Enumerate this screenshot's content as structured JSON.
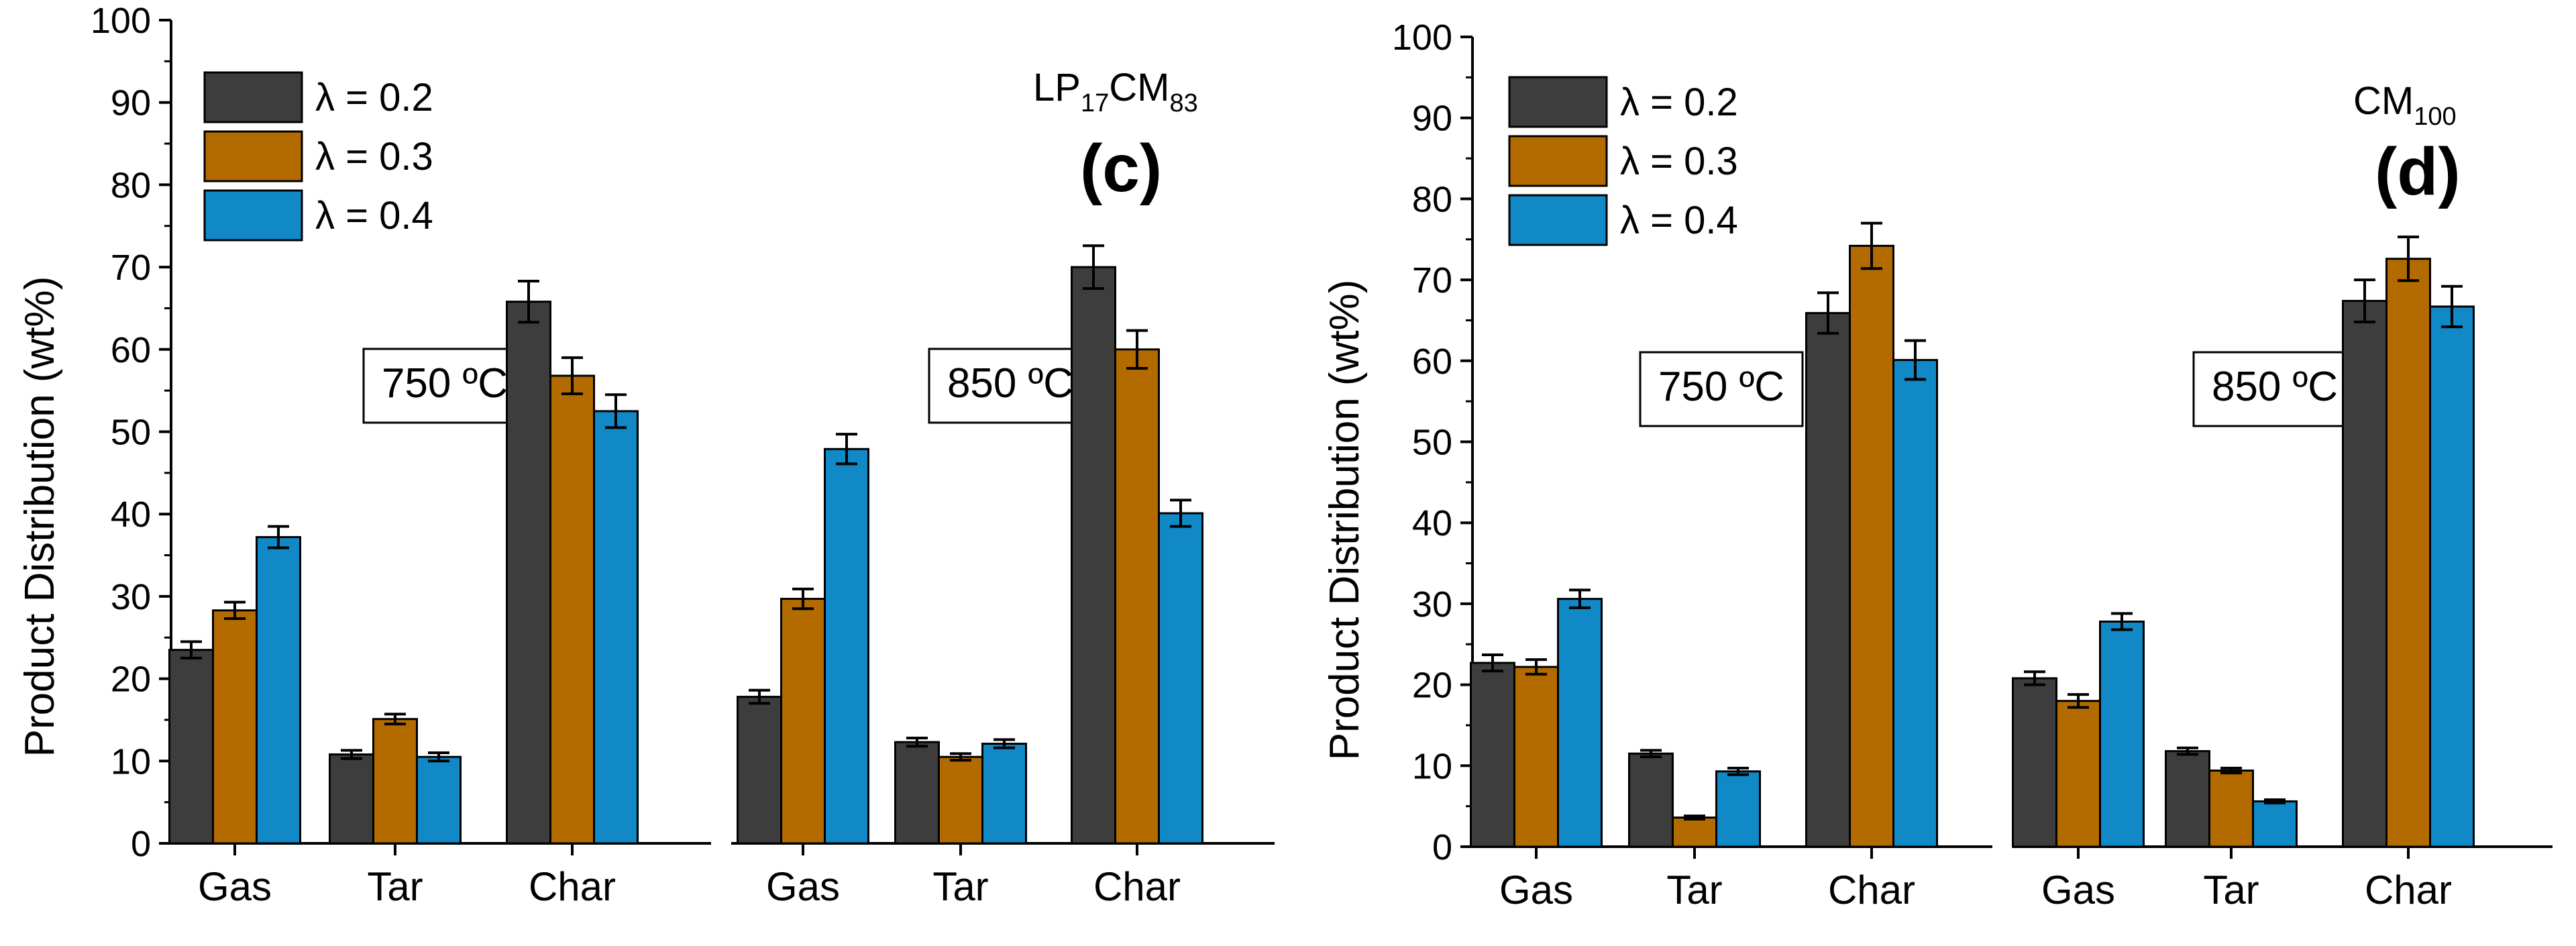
{
  "colors": {
    "lambda_0_2": "#3d3d3d",
    "lambda_0_3": "#b36b00",
    "lambda_0_4": "#1189c6"
  },
  "chart_data": [
    {
      "type": "bar",
      "panel": "(c)",
      "sample": {
        "base1": "LP",
        "sub1": "17",
        "base2": "CM",
        "sub2": "83"
      },
      "ylabel": "Product Distribution (wt%)",
      "ylim": [
        0,
        100
      ],
      "yticks": [
        "0",
        "10",
        "20",
        "30",
        "40",
        "50",
        "60",
        "70",
        "80",
        "90",
        "100"
      ],
      "legend": [
        "λ = 0.2",
        "λ = 0.3",
        "λ = 0.4"
      ],
      "groups": [
        {
          "label": "750 ºC",
          "categories": [
            "Gas",
            "Tar",
            "Char"
          ],
          "series": [
            {
              "name": "λ = 0.2",
              "values": [
                23.5,
                10.8,
                65.8
              ],
              "errors": [
                1.0,
                0.5,
                2.5
              ]
            },
            {
              "name": "λ = 0.3",
              "values": [
                28.3,
                15.1,
                56.8
              ],
              "errors": [
                1.0,
                0.6,
                2.2
              ]
            },
            {
              "name": "λ = 0.4",
              "values": [
                37.2,
                10.5,
                52.5
              ],
              "errors": [
                1.3,
                0.5,
                2.0
              ]
            }
          ]
        },
        {
          "label": "850 ºC",
          "categories": [
            "Gas",
            "Tar",
            "Char"
          ],
          "series": [
            {
              "name": "λ = 0.2",
              "values": [
                17.8,
                12.3,
                70.0
              ],
              "errors": [
                0.8,
                0.5,
                2.6
              ]
            },
            {
              "name": "λ = 0.3",
              "values": [
                29.7,
                10.5,
                60.0
              ],
              "errors": [
                1.2,
                0.4,
                2.3
              ]
            },
            {
              "name": "λ = 0.4",
              "values": [
                47.9,
                12.1,
                40.1
              ],
              "errors": [
                1.8,
                0.5,
                1.6
              ]
            }
          ]
        }
      ]
    },
    {
      "type": "bar",
      "panel": "(d)",
      "sample": {
        "base1": "CM",
        "sub1": "100"
      },
      "ylabel": "Product Distribution (wt%)",
      "ylim": [
        0,
        100
      ],
      "yticks": [
        "0",
        "10",
        "20",
        "30",
        "40",
        "50",
        "60",
        "70",
        "80",
        "90",
        "100"
      ],
      "legend": [
        "λ = 0.2",
        "λ = 0.3",
        "λ = 0.4"
      ],
      "groups": [
        {
          "label": "750 ºC",
          "categories": [
            "Gas",
            "Tar",
            "Char"
          ],
          "series": [
            {
              "name": "λ = 0.2",
              "values": [
                22.7,
                11.5,
                65.9
              ],
              "errors": [
                1.0,
                0.4,
                2.5
              ]
            },
            {
              "name": "λ = 0.3",
              "values": [
                22.2,
                3.6,
                74.2
              ],
              "errors": [
                0.9,
                0.2,
                2.8
              ]
            },
            {
              "name": "λ = 0.4",
              "values": [
                30.6,
                9.3,
                60.1
              ],
              "errors": [
                1.1,
                0.4,
                2.4
              ]
            }
          ]
        },
        {
          "label": "850 ºC",
          "categories": [
            "Gas",
            "Tar",
            "Char"
          ],
          "series": [
            {
              "name": "λ = 0.2",
              "values": [
                20.8,
                11.8,
                67.4
              ],
              "errors": [
                0.8,
                0.4,
                2.6
              ]
            },
            {
              "name": "λ = 0.3",
              "values": [
                18.0,
                9.4,
                72.6
              ],
              "errors": [
                0.8,
                0.3,
                2.7
              ]
            },
            {
              "name": "λ = 0.4",
              "values": [
                27.8,
                5.6,
                66.7
              ],
              "errors": [
                1.0,
                0.2,
                2.5
              ]
            }
          ]
        }
      ]
    }
  ]
}
